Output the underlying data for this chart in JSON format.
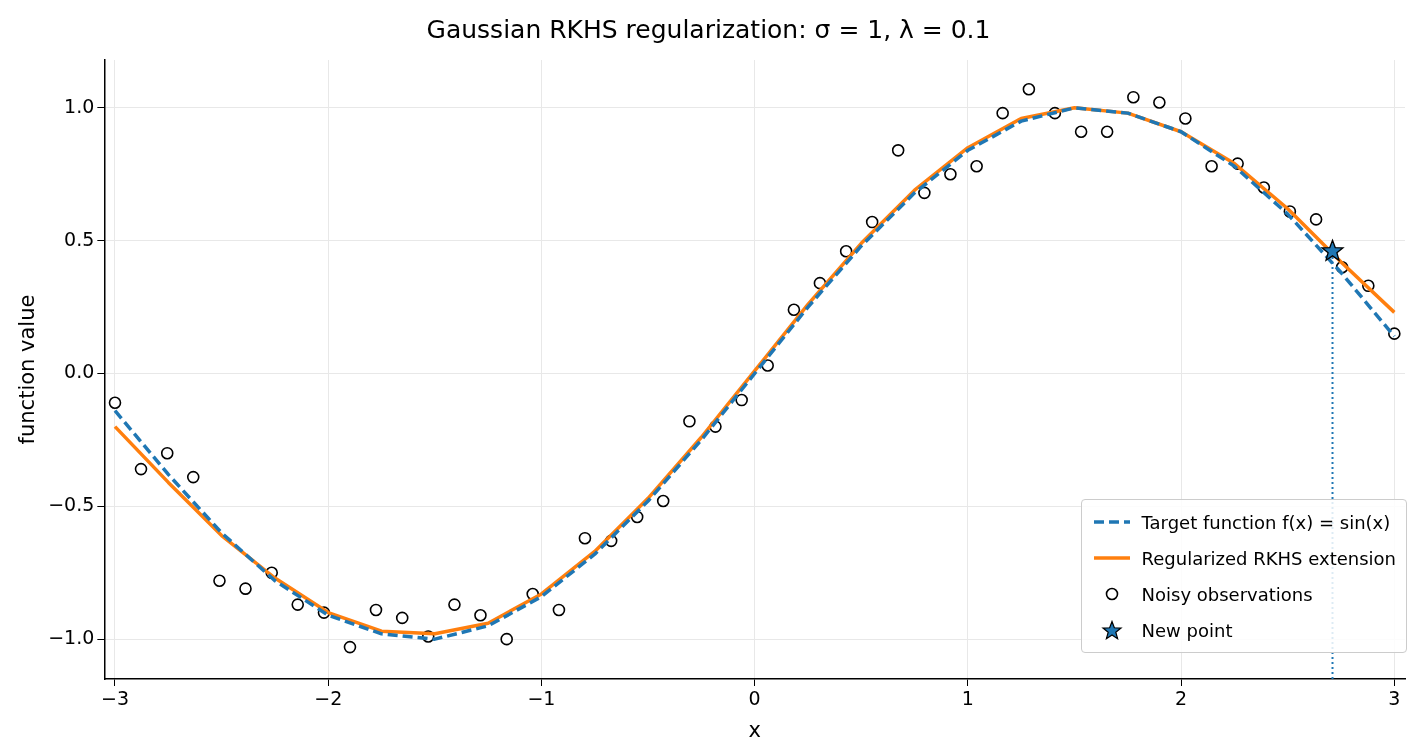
{
  "chart_data": {
    "type": "line",
    "title": "Gaussian RKHS regularization: σ = 1, λ = 0.1",
    "xlabel": "x",
    "ylabel": "function value",
    "xlim": [
      -3.05,
      3.05
    ],
    "ylim": [
      -1.15,
      1.18
    ],
    "xticks": [
      {
        "value": -3,
        "label": "−3"
      },
      {
        "value": -2,
        "label": "−2"
      },
      {
        "value": -1,
        "label": "−1"
      },
      0,
      1,
      2,
      3
    ],
    "yticks": [
      {
        "value": -1,
        "label": "−1.0"
      },
      {
        "value": -0.5,
        "label": "−0.5"
      },
      {
        "value": 0,
        "label": "0.0"
      },
      {
        "value": 0.5,
        "label": "0.5"
      },
      {
        "value": 1,
        "label": "1.0"
      }
    ],
    "grid": true,
    "legend": "bottom right",
    "series": [
      {
        "name": "Target function f(x) = sin(x)",
        "color": "#1f77b4",
        "line_style": "dashed",
        "marker": "none",
        "x": [
          -3,
          -2.75,
          -2.5,
          -2.25,
          -2,
          -1.75,
          -1.5,
          -1.25,
          -1,
          -0.75,
          -0.5,
          -0.25,
          0,
          0.25,
          0.5,
          0.75,
          1,
          1.25,
          1.5,
          1.75,
          2,
          2.25,
          2.5,
          2.75,
          3
        ],
        "values": [
          -0.14,
          -0.38,
          -0.6,
          -0.78,
          -0.91,
          -0.98,
          -1.0,
          -0.95,
          -0.84,
          -0.68,
          -0.48,
          -0.25,
          0,
          0.25,
          0.48,
          0.68,
          0.84,
          0.95,
          1.0,
          0.98,
          0.91,
          0.78,
          0.6,
          0.38,
          0.14
        ]
      },
      {
        "name": "Regularized RKHS extension",
        "color": "#ff7f0e",
        "line_style": "solid",
        "marker": "none",
        "x": [
          -3,
          -2.75,
          -2.5,
          -2.25,
          -2,
          -1.75,
          -1.5,
          -1.25,
          -1,
          -0.75,
          -0.5,
          -0.25,
          0,
          0.25,
          0.5,
          0.75,
          1,
          1.25,
          1.5,
          1.75,
          2,
          2.25,
          2.5,
          2.75,
          3
        ],
        "values": [
          -0.2,
          -0.41,
          -0.61,
          -0.77,
          -0.9,
          -0.97,
          -0.98,
          -0.94,
          -0.83,
          -0.67,
          -0.47,
          -0.24,
          0.01,
          0.26,
          0.49,
          0.69,
          0.85,
          0.96,
          1.0,
          0.98,
          0.91,
          0.79,
          0.62,
          0.42,
          0.23
        ]
      },
      {
        "name": "Noisy observations",
        "type": "scatter",
        "color": "#000000",
        "marker": "circle",
        "x": [
          -3,
          -2.878,
          -2.755,
          -2.633,
          -2.51,
          -2.388,
          -2.265,
          -2.143,
          -2.02,
          -1.898,
          -1.776,
          -1.653,
          -1.531,
          -1.408,
          -1.286,
          -1.163,
          -1.041,
          -0.918,
          -0.796,
          -0.673,
          -0.551,
          -0.429,
          -0.306,
          -0.184,
          -0.061,
          0.061,
          0.184,
          0.306,
          0.429,
          0.551,
          0.673,
          0.796,
          0.918,
          1.041,
          1.163,
          1.286,
          1.408,
          1.531,
          1.653,
          1.776,
          1.898,
          2.02,
          2.143,
          2.265,
          2.388,
          2.51,
          2.633,
          2.755,
          2.878,
          3
        ],
        "values": [
          -0.11,
          -0.36,
          -0.3,
          -0.39,
          -0.78,
          -0.81,
          -0.75,
          -0.87,
          -0.9,
          -1.03,
          -0.89,
          -0.92,
          -0.99,
          -0.87,
          -0.91,
          -1.0,
          -0.83,
          -0.89,
          -0.62,
          -0.63,
          -0.54,
          -0.48,
          -0.18,
          -0.2,
          -0.1,
          0.03,
          0.24,
          0.34,
          0.46,
          0.57,
          0.84,
          0.68,
          0.75,
          0.78,
          0.98,
          1.07,
          0.98,
          0.91,
          0.91,
          1.04,
          1.02,
          0.96,
          0.78,
          0.79,
          0.7,
          0.61,
          0.58,
          0.4,
          0.33,
          0.15
        ]
      },
      {
        "name": "New point",
        "type": "scatter",
        "color": "#1f77b4",
        "marker": "star",
        "x": [
          2.71
        ],
        "values": [
          0.46
        ]
      },
      {
        "color": "#1f77b4",
        "line_style": "dotted",
        "marker": "none",
        "x": [
          2.71,
          2.71
        ],
        "values": [
          -1.15,
          0.46
        ]
      }
    ]
  }
}
